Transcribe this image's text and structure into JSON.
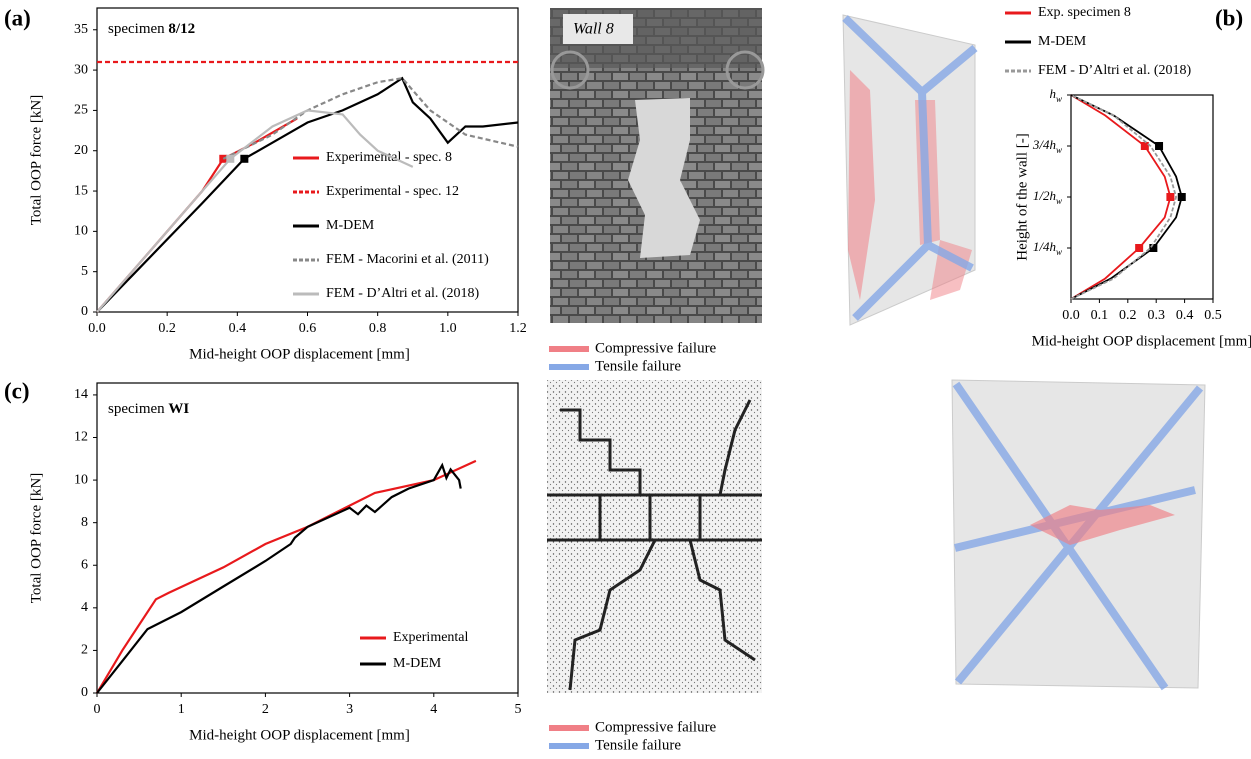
{
  "panel_labels": [
    "(a)",
    "(b)",
    "(c)"
  ],
  "photo_label": "Wall 8",
  "failure_legend": [
    {
      "name": "Compressive failure",
      "color": "#f07f86"
    },
    {
      "name": "Tensile failure",
      "color": "#86a8e6"
    }
  ],
  "chart_data": [
    {
      "type": "line",
      "annotation": {
        "text": "specimen",
        "bold": "8/12"
      },
      "x_label": "Mid-height OOP displacement [mm]",
      "y_label": "Total OOP force [kN]",
      "xlim": [
        0,
        1.2
      ],
      "xticks": [
        {
          "value": 0,
          "label": "0.0"
        },
        0.2,
        0.4,
        0.6,
        0.8,
        {
          "value": 1,
          "label": "1.0"
        },
        1.2
      ],
      "ylim": [
        0,
        37.7
      ],
      "yticks": [
        0,
        5,
        10,
        15,
        20,
        25,
        30,
        35
      ],
      "series": [
        {
          "name": "Experimental - spec. 8",
          "color": "#e8191c",
          "dash": false,
          "x": [
            0,
            0.1,
            0.2,
            0.3,
            0.36,
            0.45,
            0.57
          ],
          "values": [
            0,
            5,
            10,
            15,
            19,
            21,
            24
          ],
          "marker": {
            "x": 0.36,
            "y": 19
          }
        },
        {
          "name": "Experimental - spec. 12",
          "color": "#e8191c",
          "dash": true,
          "x": [
            0,
            1.2
          ],
          "values": [
            31,
            31
          ]
        },
        {
          "name": "M-DEM",
          "color": "#000000",
          "dash": false,
          "x": [
            0,
            0.1,
            0.2,
            0.3,
            0.42,
            0.5,
            0.6,
            0.7,
            0.8,
            0.87,
            0.9,
            0.95,
            1.0,
            1.05,
            1.1,
            1.2
          ],
          "values": [
            0,
            4.5,
            9,
            13.5,
            19,
            21,
            23.5,
            25,
            27,
            29,
            26,
            24,
            21,
            23,
            23,
            23.5
          ],
          "marker": {
            "x": 0.42,
            "y": 19
          }
        },
        {
          "name": "FEM - Macorini et al. (2011)",
          "color": "#888888",
          "dash": true,
          "x": [
            0.36,
            0.5,
            0.6,
            0.7,
            0.8,
            0.87,
            0.95,
            1.05,
            1.15,
            1.2
          ],
          "values": [
            19,
            22,
            25,
            27,
            28.5,
            29,
            25,
            22,
            21,
            20.5
          ]
        },
        {
          "name": "FEM - D’Altri et al. (2018)",
          "color": "#bbbbbb",
          "dash": false,
          "x": [
            0,
            0.2,
            0.38,
            0.5,
            0.6,
            0.7,
            0.75,
            0.8,
            0.85,
            0.9
          ],
          "values": [
            0,
            10,
            19,
            23,
            25,
            24.5,
            22,
            20,
            19,
            18
          ],
          "marker": {
            "x": 0.38,
            "y": 19
          }
        }
      ]
    },
    {
      "type": "profile",
      "x_label": "Mid-height OOP displacement [mm]",
      "y_label": "Height of the wall [-]",
      "xlim": [
        0,
        0.5
      ],
      "xticks": [
        {
          "value": 0,
          "label": "0.0"
        },
        0.1,
        0.2,
        0.3,
        0.4,
        0.5
      ],
      "ylim": [
        0,
        1
      ],
      "yticks": [
        {
          "value": 0.25,
          "label": "1/4hw"
        },
        {
          "value": 0.5,
          "label": "1/2hw"
        },
        {
          "value": 0.75,
          "label": "3/4hw"
        },
        {
          "value": 1,
          "label": "hw"
        }
      ],
      "heights": [
        0,
        0.1,
        0.25,
        0.4,
        0.5,
        0.6,
        0.75,
        0.9,
        1
      ],
      "marker_heights": [
        0.25,
        0.5,
        0.75
      ],
      "series": [
        {
          "name": "Exp. specimen 8",
          "color": "#e8191c",
          "dash": false,
          "values": [
            0,
            0.12,
            0.24,
            0.33,
            0.35,
            0.33,
            0.26,
            0.12,
            0
          ],
          "marker_values": [
            0.24,
            0.35,
            0.26
          ]
        },
        {
          "name": "M-DEM",
          "color": "#000000",
          "dash": false,
          "values": [
            0,
            0.14,
            0.29,
            0.37,
            0.39,
            0.37,
            0.31,
            0.15,
            0
          ],
          "marker_values": [
            0.29,
            0.39,
            0.31
          ]
        },
        {
          "name": "FEM - D’Altri et al. (2018)",
          "color": "#999999",
          "dash": true,
          "values": [
            0,
            0.15,
            0.28,
            0.35,
            0.37,
            0.35,
            0.28,
            0.15,
            0
          ]
        }
      ]
    },
    {
      "type": "line",
      "annotation": {
        "text": "specimen",
        "bold": "WI"
      },
      "x_label": "Mid-height OOP displacement [mm]",
      "y_label": "Total OOP force [kN]",
      "xlim": [
        0,
        5
      ],
      "xticks": [
        0,
        1,
        2,
        3,
        4,
        5
      ],
      "ylim": [
        0,
        14.56
      ],
      "yticks": [
        0,
        2,
        4,
        6,
        8,
        10,
        12,
        14
      ],
      "series": [
        {
          "name": "Experimental",
          "color": "#e8191c",
          "dash": false,
          "x": [
            0,
            0.3,
            0.7,
            0.85,
            1.5,
            2,
            2.5,
            3,
            3.3,
            4,
            4.5
          ],
          "values": [
            0,
            2,
            4.4,
            4.7,
            5.9,
            7,
            7.8,
            8.8,
            9.4,
            10,
            10.9
          ]
        },
        {
          "name": "M-DEM",
          "color": "#000000",
          "dash": false,
          "x": [
            0,
            0.3,
            0.6,
            1,
            1.5,
            2,
            2.3,
            2.35,
            2.5,
            3,
            3.1,
            3.2,
            3.3,
            3.5,
            3.7,
            4,
            4.1,
            4.15,
            4.2,
            4.3,
            4.32
          ],
          "values": [
            0,
            1.5,
            3,
            3.8,
            5,
            6.2,
            7,
            7.3,
            7.8,
            8.7,
            8.4,
            8.8,
            8.5,
            9.2,
            9.6,
            10,
            10.7,
            10.1,
            10.5,
            10,
            9.6
          ]
        }
      ]
    }
  ]
}
